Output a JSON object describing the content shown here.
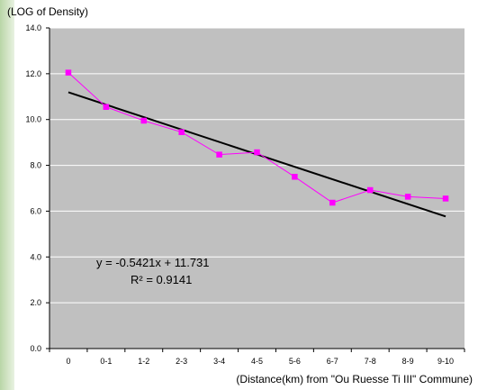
{
  "chart_data": {
    "type": "line",
    "title": "",
    "ylabel": "(LOG of Density)",
    "xlabel": "(Distance(km) from \"Ou Ruesse Ti III\" Commune)",
    "categories": [
      "0",
      "0-1",
      "1-2",
      "2-3",
      "3-4",
      "4-5",
      "5-6",
      "6-7",
      "7-8",
      "8-9",
      "9-10"
    ],
    "y_tick_labels": [
      "0.0",
      "2.0",
      "4.0",
      "6.0",
      "8.0",
      "10.0",
      "12.0",
      "14.0"
    ],
    "ylim": [
      0,
      14
    ],
    "grid": "horizontal",
    "legend": "none",
    "series": [
      {
        "values": [
          12.05,
          10.55,
          9.95,
          9.45,
          8.47,
          8.57,
          7.5,
          6.37,
          6.92,
          6.63,
          6.55
        ],
        "color": "#ff00ff"
      }
    ],
    "trendline": {
      "type": "linear",
      "slope": -0.5421,
      "intercept": 11.731,
      "color": "#000000",
      "equation": "y = -0.5421x + 11.731",
      "r_squared": "R² = 0.9141"
    },
    "plot_background": "#c0c0c0"
  }
}
